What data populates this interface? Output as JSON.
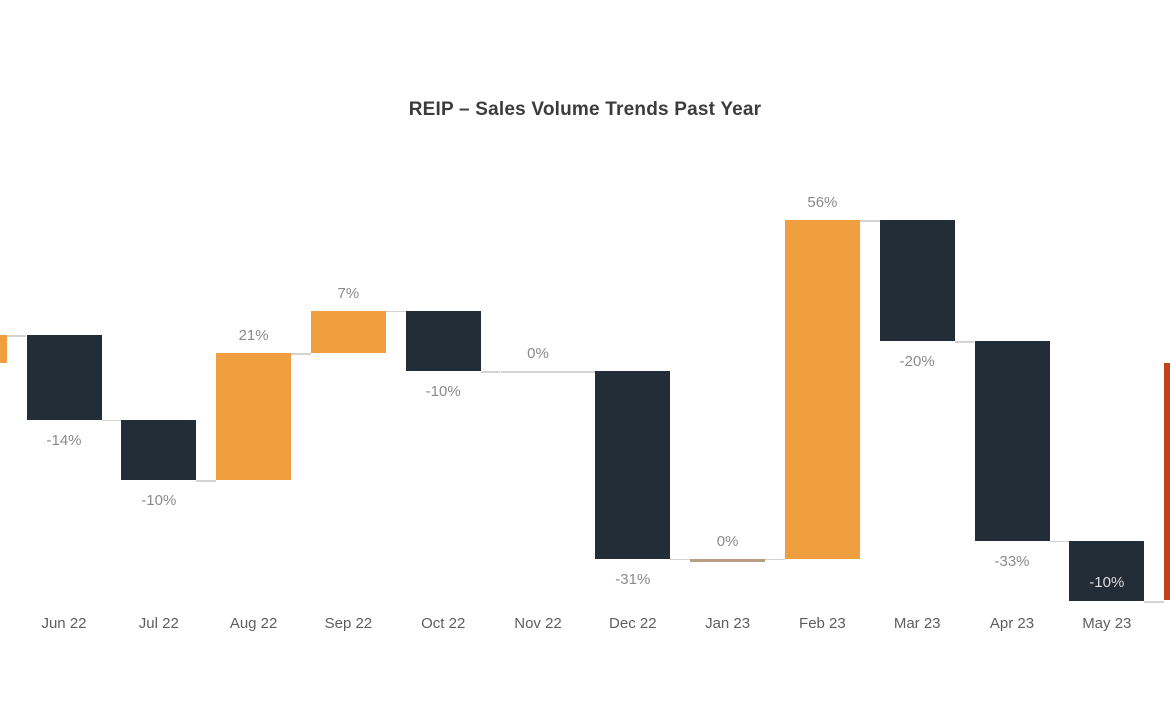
{
  "chart_data": {
    "type": "waterfall",
    "title": "REIP – Sales Volume Trends Past Year",
    "ylabel": "",
    "xlabel": "",
    "legend": "none",
    "gridlines": "none",
    "y_axis": "hidden",
    "unit": "%",
    "start_level_pct": 0,
    "categories": [
      "Jun 22",
      "Jul 22",
      "Aug 22",
      "Sep 22",
      "Oct 22",
      "Nov 22",
      "Dec 22",
      "Jan 23",
      "Feb 23",
      "Mar 23",
      "Apr 23",
      "May 23"
    ],
    "columns": [
      {
        "month": "Jun 22",
        "change_pct": -14,
        "label": "-14%",
        "label_pos": "below"
      },
      {
        "month": "Jul 22",
        "change_pct": -10,
        "label": "-10%",
        "label_pos": "below"
      },
      {
        "month": "Aug 22",
        "change_pct": 21,
        "label": "21%",
        "label_pos": "above"
      },
      {
        "month": "Sep 22",
        "change_pct": 7,
        "label": "7%",
        "label_pos": "above"
      },
      {
        "month": "Oct 22",
        "change_pct": -10,
        "label": "-10%",
        "label_pos": "below"
      },
      {
        "month": "Nov 22",
        "change_pct": 0,
        "label": "0%",
        "label_pos": "above",
        "zero_render": "line"
      },
      {
        "month": "Dec 22",
        "change_pct": -31,
        "label": "-31%",
        "label_pos": "below"
      },
      {
        "month": "Jan 23",
        "change_pct": 0,
        "label": "0%",
        "label_pos": "above",
        "zero_render": "sliver"
      },
      {
        "month": "Feb 23",
        "change_pct": 56,
        "label": "56%",
        "label_pos": "above"
      },
      {
        "month": "Mar 23",
        "change_pct": -20,
        "label": "-20%",
        "label_pos": "below"
      },
      {
        "month": "Apr 23",
        "change_pct": -33,
        "label": "-33%",
        "label_pos": "below"
      },
      {
        "month": "May 23",
        "change_pct": -10,
        "label": "-10%",
        "label_pos": "inside"
      }
    ],
    "partial_bars": {
      "left": {
        "role": "increase",
        "from_pct": -4.6,
        "to_pct": 0
      },
      "right": {
        "role": "total",
        "from_pct": -43.8,
        "to_pct": -4.6
      }
    },
    "colors": {
      "increase": "#EF9F40",
      "decrease": "#232D37",
      "total": "#C64117",
      "zero_sliver": "#B89C84",
      "connector": "#D5D3D1",
      "value_label": "#8A8A8A",
      "inside_label": "#DCDCDC",
      "month_label": "#5E5E5E",
      "title": "#3C3C3C",
      "background": "#FFFFFF"
    }
  }
}
